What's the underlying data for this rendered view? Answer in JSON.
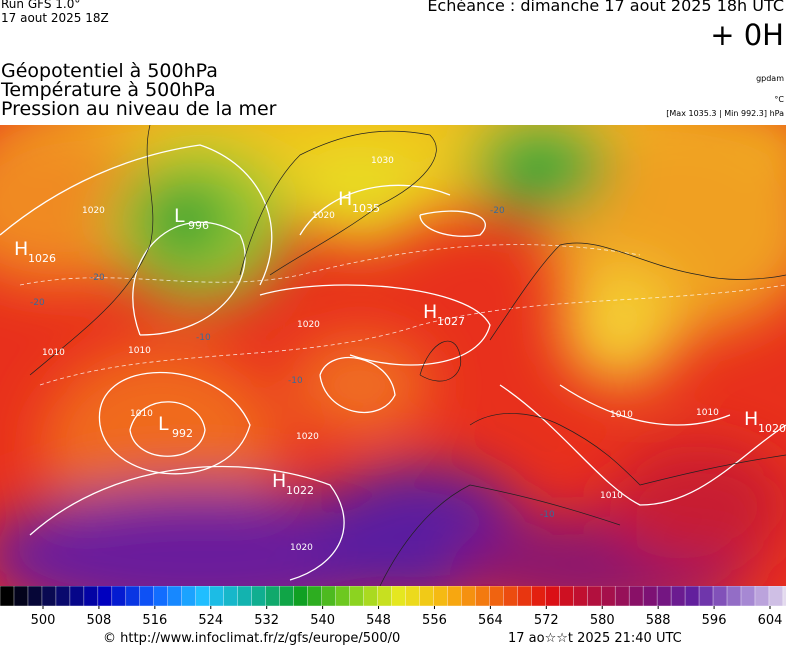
{
  "header": {
    "run": "Run GFS 1.0°",
    "run_time": "17 aout 2025 18Z",
    "valid": "Echéance : dimanche 17 aout 2025 18h UTC",
    "lead": "+ 0H",
    "fields": [
      "Géopotentiel à 500hPa",
      "Température à 500hPa",
      "Pression au niveau de la mer"
    ],
    "units": [
      "gpdam",
      "°C"
    ],
    "extremes": "[Max 1035.3 | Min 992.3] hPa"
  },
  "map": {
    "centers": [
      {
        "letter": "H",
        "value": "1026"
      },
      {
        "letter": "L",
        "value": "996"
      },
      {
        "letter": "H",
        "value": "1035"
      },
      {
        "letter": "H",
        "value": "1027"
      },
      {
        "letter": "L",
        "value": "992"
      },
      {
        "letter": "H",
        "value": "1022"
      },
      {
        "letter": "H",
        "value": "1020"
      }
    ],
    "isobar_labels": [
      "1020",
      "1020",
      "1030",
      "1010",
      "1010",
      "1020",
      "1010",
      "1020",
      "1020",
      "1010",
      "1010",
      "1010"
    ],
    "isotherm_labels": [
      "-20",
      "-20",
      "-20",
      "-10",
      "-10",
      "-10"
    ]
  },
  "colorbar": {
    "ticks": [
      500,
      508,
      516,
      524,
      532,
      540,
      548,
      556,
      564,
      572,
      580,
      588,
      596,
      604
    ]
  },
  "footer": {
    "source": "© http://www.infoclimat.fr/z/gfs/europe/500/0",
    "generated": "17 ao☆☆t 2025 21:40 UTC"
  }
}
